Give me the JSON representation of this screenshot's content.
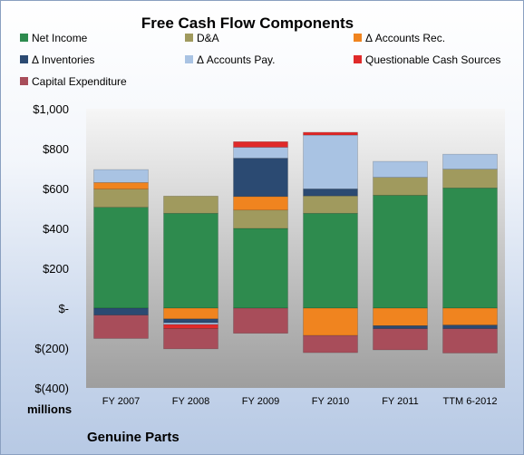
{
  "chart_data": {
    "type": "bar",
    "title": "Free Cash Flow Components",
    "units_label": "millions",
    "company_label": "Genuine Parts",
    "categories": [
      "FY 2007",
      "FY 2008",
      "FY 2009",
      "FY 2010",
      "FY 2011",
      "TTM 6-2012"
    ],
    "ylim": [
      -400,
      1000
    ],
    "yticks": [
      -400,
      -200,
      0,
      200,
      400,
      600,
      800,
      1000
    ],
    "ytick_labels": [
      "$(400)",
      "$(200)",
      "$-",
      "$200",
      "$400",
      "$600",
      "$800",
      "$1,000"
    ],
    "grid": false,
    "stacked": true,
    "series": [
      {
        "name": "Net Income",
        "color": "#2e8b4e",
        "values": [
          506,
          476,
          400,
          476,
          566,
          603
        ]
      },
      {
        "name": "D&A",
        "color": "#a09a5e",
        "values": [
          91,
          86,
          92,
          87,
          90,
          94
        ]
      },
      {
        "name": "Δ Accounts Rec.",
        "color": "#f0841f",
        "values": [
          33,
          -54,
          68,
          -137,
          -88,
          -85
        ]
      },
      {
        "name": "Δ Inventories",
        "color": "#2b4a72",
        "values": [
          -35,
          -19,
          192,
          35,
          -15,
          -18
        ]
      },
      {
        "name": "Δ Accounts Pay.",
        "color": "#a9c3e3",
        "values": [
          65,
          -9,
          55,
          270,
          80,
          75
        ]
      },
      {
        "name": "Questionable Cash Sources",
        "color": "#e02a2a",
        "values": [
          0,
          -20,
          28,
          14,
          0,
          0
        ]
      },
      {
        "name": "Capital Expenditure",
        "color": "#a84d5a",
        "values": [
          -117,
          -102,
          -126,
          -86,
          -106,
          -122
        ]
      }
    ]
  }
}
